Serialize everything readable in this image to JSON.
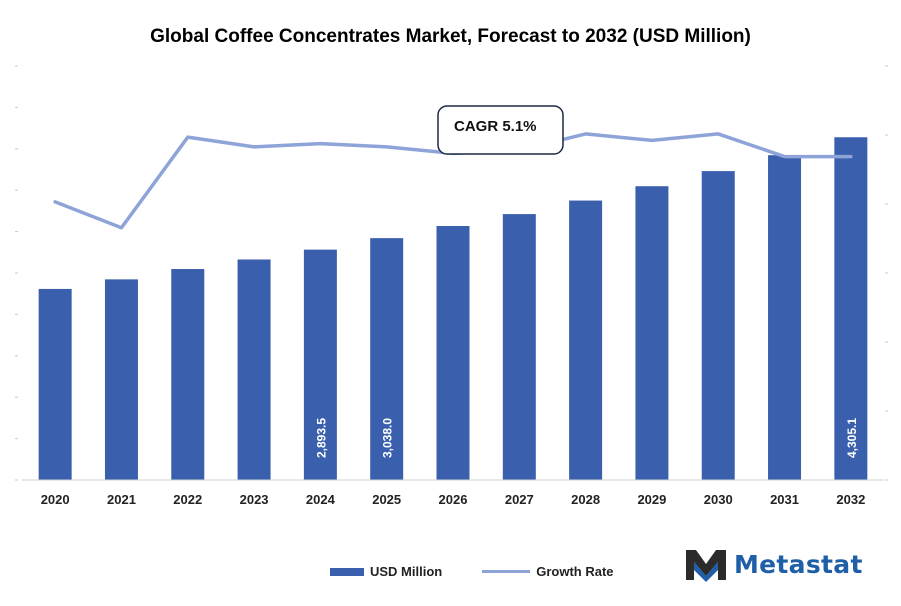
{
  "chart_data": {
    "type": "bar",
    "title": "Global Coffee Concentrates Market, Forecast to 2032 (USD Million)",
    "categories": [
      "2020",
      "2021",
      "2022",
      "2023",
      "2024",
      "2025",
      "2026",
      "2027",
      "2028",
      "2029",
      "2030",
      "2031",
      "2032"
    ],
    "series": [
      {
        "name": "USD Million",
        "type": "bar",
        "values": [
          2400,
          2520,
          2650,
          2770,
          2893.5,
          3038.0,
          3190,
          3340,
          3510,
          3690,
          3880,
          4080,
          4305.1
        ]
      },
      {
        "name": "Growth Rate",
        "type": "line",
        "values": [
          4.3,
          3.9,
          5.3,
          5.15,
          5.2,
          5.15,
          5.05,
          5.1,
          5.35,
          5.25,
          5.35,
          5.0,
          5.0
        ]
      }
    ],
    "data_labels": {
      "4": "2,893.5",
      "5": "3,038.0",
      "12": "4,305.1"
    },
    "ylim_left": [
      0,
      5200
    ],
    "ylim_right": [
      0,
      6.4
    ],
    "annotation": "CAGR 5.1%",
    "legend_position": "bottom",
    "colors": {
      "bar": "#3a60ad",
      "line": "#8ea4d8"
    }
  },
  "legend": {
    "bar_label": "USD Million",
    "line_label": "Growth Rate"
  },
  "brand": {
    "name": "Metastat"
  }
}
